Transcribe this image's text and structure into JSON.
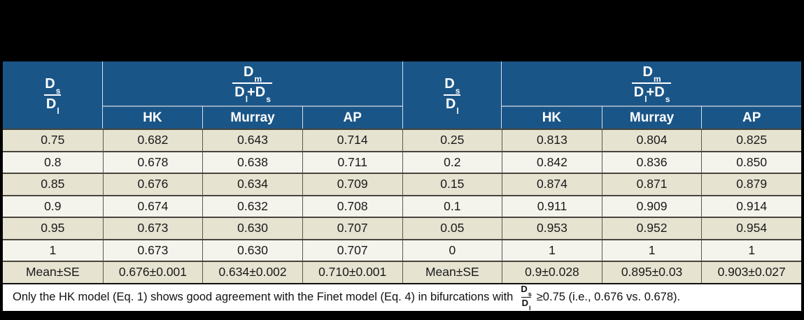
{
  "colors": {
    "header_blue": "#1a5587",
    "header_text": "#ffffff",
    "row_beige": "#e6e3d1",
    "row_light": "#f4f3ec",
    "grid_line": "#47453c",
    "footer_bg": "#ffffff",
    "page_bg": "#000000"
  },
  "table": {
    "header": {
      "ratio": {
        "num_base": "D",
        "num_sub": "s",
        "den_base": "D",
        "den_sub": "l"
      },
      "dm": {
        "num_base": "D",
        "num_sub": "m",
        "den1_base": "D",
        "den1_sub": "l",
        "plus": "+",
        "den2_base": "D",
        "den2_sub": "s"
      },
      "models": [
        "HK",
        "Murray",
        "AP"
      ]
    },
    "rows": [
      [
        "0.75",
        "0.682",
        "0.643",
        "0.714",
        "0.25",
        "0.813",
        "0.804",
        "0.825"
      ],
      [
        "0.8",
        "0.678",
        "0.638",
        "0.711",
        "0.2",
        "0.842",
        "0.836",
        "0.850"
      ],
      [
        "0.85",
        "0.676",
        "0.634",
        "0.709",
        "0.15",
        "0.874",
        "0.871",
        "0.879"
      ],
      [
        "0.9",
        "0.674",
        "0.632",
        "0.708",
        "0.1",
        "0.911",
        "0.909",
        "0.914"
      ],
      [
        "0.95",
        "0.673",
        "0.630",
        "0.707",
        "0.05",
        "0.953",
        "0.952",
        "0.954"
      ],
      [
        "1",
        "0.673",
        "0.630",
        "0.707",
        "0",
        "1",
        "1",
        "1"
      ],
      [
        "Mean±SE",
        "0.676±0.001",
        "0.634±0.002",
        "0.710±0.001",
        "Mean±SE",
        "0.9±0.028",
        "0.895±0.03",
        "0.903±0.027"
      ]
    ],
    "footer": {
      "before": "Only the HK model (Eq. 1) shows good agreement with the Finet model (Eq. 4) in bifurcations with",
      "frac": {
        "num_base": "D",
        "num_sub": "s",
        "den_base": "D",
        "den_sub": "l"
      },
      "after": "≥0.75 (i.e., 0.676 vs. 0.678)."
    }
  }
}
